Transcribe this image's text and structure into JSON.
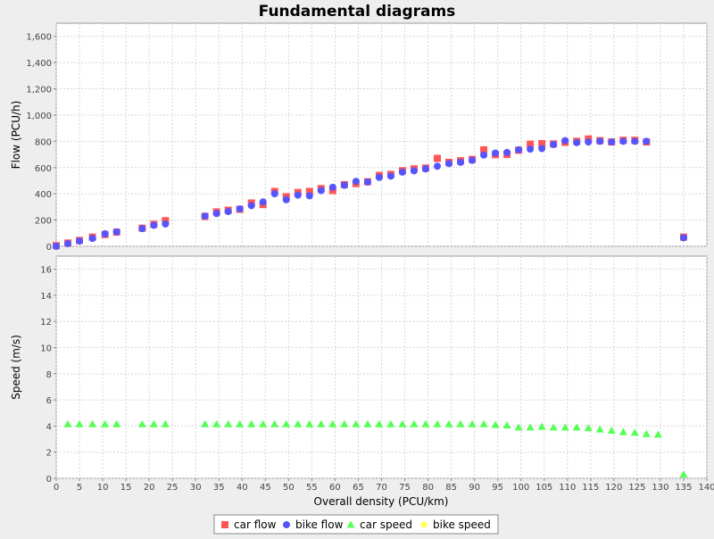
{
  "chart_data": {
    "type": "scatter",
    "title": "Fundamental diagrams",
    "xlabel": "Overall density (PCU/km)",
    "xlim": [
      0,
      140
    ],
    "xticks": [
      0,
      5,
      10,
      15,
      20,
      25,
      30,
      35,
      40,
      45,
      50,
      55,
      60,
      65,
      70,
      75,
      80,
      85,
      90,
      95,
      100,
      105,
      110,
      115,
      120,
      125,
      130,
      135,
      140
    ],
    "grid": true,
    "legend_position": "bottom",
    "panels": [
      {
        "ylabel": "Flow (PCU/h)",
        "ylim": [
          0,
          1700
        ],
        "yticks": [
          0,
          200,
          400,
          600,
          800,
          1000,
          1200,
          1400,
          1600
        ],
        "ytick_labels": [
          "0",
          "200",
          "400",
          "600",
          "800",
          "1,000",
          "1,200",
          "1,400",
          "1,600"
        ],
        "series": [
          {
            "name": "car flow",
            "marker": "square",
            "color": "#ff5555",
            "points": [
              [
                0,
                5
              ],
              [
                2.5,
                25
              ],
              [
                5,
                45
              ],
              [
                7.8,
                70
              ],
              [
                10.5,
                90
              ],
              [
                13,
                108
              ],
              [
                18.5,
                138
              ],
              [
                21,
                168
              ],
              [
                23.5,
                195
              ],
              [
                32,
                228
              ],
              [
                34.5,
                262
              ],
              [
                37,
                275
              ],
              [
                39.5,
                282
              ],
              [
                42,
                330
              ],
              [
                44.5,
                318
              ],
              [
                47,
                418
              ],
              [
                49.5,
                378
              ],
              [
                52,
                410
              ],
              [
                54.5,
                418
              ],
              [
                57,
                440
              ],
              [
                59.5,
                425
              ],
              [
                62,
                470
              ],
              [
                64.5,
                478
              ],
              [
                67,
                492
              ],
              [
                69.5,
                540
              ],
              [
                72,
                548
              ],
              [
                74.5,
                576
              ],
              [
                77,
                590
              ],
              [
                79.5,
                596
              ],
              [
                82,
                670
              ],
              [
                84.5,
                640
              ],
              [
                87,
                652
              ],
              [
                89.5,
                662
              ],
              [
                92,
                735
              ],
              [
                94.5,
                698
              ],
              [
                97,
                700
              ],
              [
                99.5,
                732
              ],
              [
                102,
                778
              ],
              [
                104.5,
                782
              ],
              [
                107,
                780
              ],
              [
                109.5,
                792
              ],
              [
                112,
                800
              ],
              [
                114.5,
                818
              ],
              [
                117,
                805
              ],
              [
                119.5,
                795
              ],
              [
                122,
                808
              ],
              [
                124.5,
                808
              ],
              [
                127,
                795
              ],
              [
                135,
                70
              ]
            ]
          },
          {
            "name": "bike flow",
            "marker": "circle",
            "color": "#5555ff",
            "points": [
              [
                0,
                0
              ],
              [
                2.5,
                20
              ],
              [
                5,
                40
              ],
              [
                7.8,
                60
              ],
              [
                10.5,
                95
              ],
              [
                13,
                110
              ],
              [
                18.5,
                135
              ],
              [
                21,
                160
              ],
              [
                23.5,
                170
              ],
              [
                32,
                230
              ],
              [
                34.5,
                250
              ],
              [
                37,
                265
              ],
              [
                39.5,
                285
              ],
              [
                42,
                310
              ],
              [
                44.5,
                338
              ],
              [
                47,
                400
              ],
              [
                49.5,
                355
              ],
              [
                52,
                390
              ],
              [
                54.5,
                385
              ],
              [
                57,
                425
              ],
              [
                59.5,
                450
              ],
              [
                62,
                465
              ],
              [
                64.5,
                495
              ],
              [
                67,
                490
              ],
              [
                69.5,
                525
              ],
              [
                72,
                535
              ],
              [
                74.5,
                565
              ],
              [
                77,
                575
              ],
              [
                79.5,
                590
              ],
              [
                82,
                610
              ],
              [
                84.5,
                630
              ],
              [
                87,
                640
              ],
              [
                89.5,
                655
              ],
              [
                92,
                695
              ],
              [
                94.5,
                710
              ],
              [
                97,
                715
              ],
              [
                99.5,
                735
              ],
              [
                102,
                740
              ],
              [
                104.5,
                745
              ],
              [
                107,
                775
              ],
              [
                109.5,
                805
              ],
              [
                112,
                790
              ],
              [
                114.5,
                795
              ],
              [
                117,
                800
              ],
              [
                119.5,
                795
              ],
              [
                122,
                800
              ],
              [
                124.5,
                800
              ],
              [
                127,
                800
              ],
              [
                135,
                65
              ]
            ]
          }
        ]
      },
      {
        "ylabel": "Speed (m/s)",
        "ylim": [
          0,
          17
        ],
        "yticks": [
          0,
          2,
          4,
          6,
          8,
          10,
          12,
          14,
          16
        ],
        "ytick_labels": [
          "0",
          "2",
          "4",
          "6",
          "8",
          "10",
          "12",
          "14",
          "16"
        ],
        "series": [
          {
            "name": "car speed",
            "marker": "triangle",
            "color": "#55ff55",
            "points": [
              [
                2.5,
                4.15
              ],
              [
                5,
                4.15
              ],
              [
                7.8,
                4.15
              ],
              [
                10.5,
                4.15
              ],
              [
                13,
                4.15
              ],
              [
                18.5,
                4.15
              ],
              [
                21,
                4.15
              ],
              [
                23.5,
                4.15
              ],
              [
                32,
                4.15
              ],
              [
                34.5,
                4.15
              ],
              [
                37,
                4.15
              ],
              [
                39.5,
                4.15
              ],
              [
                42,
                4.15
              ],
              [
                44.5,
                4.15
              ],
              [
                47,
                4.15
              ],
              [
                49.5,
                4.15
              ],
              [
                52,
                4.15
              ],
              [
                54.5,
                4.15
              ],
              [
                57,
                4.15
              ],
              [
                59.5,
                4.15
              ],
              [
                62,
                4.15
              ],
              [
                64.5,
                4.15
              ],
              [
                67,
                4.15
              ],
              [
                69.5,
                4.15
              ],
              [
                72,
                4.15
              ],
              [
                74.5,
                4.15
              ],
              [
                77,
                4.15
              ],
              [
                79.5,
                4.15
              ],
              [
                82,
                4.15
              ],
              [
                84.5,
                4.15
              ],
              [
                87,
                4.15
              ],
              [
                89.5,
                4.15
              ],
              [
                92,
                4.15
              ],
              [
                94.5,
                4.1
              ],
              [
                97,
                4.05
              ],
              [
                99.5,
                3.9
              ],
              [
                102,
                3.9
              ],
              [
                104.5,
                3.95
              ],
              [
                107,
                3.9
              ],
              [
                109.5,
                3.9
              ],
              [
                112,
                3.9
              ],
              [
                114.5,
                3.85
              ],
              [
                117,
                3.75
              ],
              [
                119.5,
                3.65
              ],
              [
                122,
                3.55
              ],
              [
                124.5,
                3.5
              ],
              [
                127,
                3.4
              ],
              [
                129.5,
                3.35
              ],
              [
                135,
                0.3
              ]
            ]
          },
          {
            "name": "bike speed",
            "marker": "diamond",
            "color": "#ffff55",
            "points": []
          }
        ]
      }
    ]
  }
}
